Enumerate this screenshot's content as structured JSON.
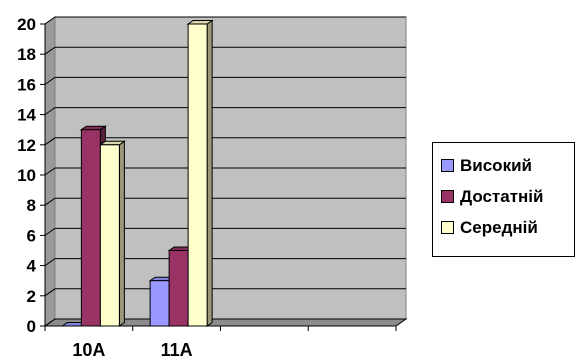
{
  "chart_data": {
    "type": "bar",
    "categories": [
      "10А",
      "11А"
    ],
    "series": [
      {
        "name": "Високий",
        "values": [
          0,
          3
        ],
        "color": "#9999ff"
      },
      {
        "name": "Достатній",
        "values": [
          13,
          5
        ],
        "color": "#993366"
      },
      {
        "name": "Середній",
        "values": [
          12,
          20
        ],
        "color": "#ffffcc"
      }
    ],
    "ylim": [
      0,
      20
    ],
    "yticks": [
      0,
      2,
      4,
      6,
      8,
      10,
      12,
      14,
      16,
      18,
      20
    ],
    "title": "",
    "xlabel": "",
    "ylabel": "",
    "grid": true,
    "legend_position": "right",
    "three_d": true,
    "wall_color": "#c0c0c0"
  }
}
